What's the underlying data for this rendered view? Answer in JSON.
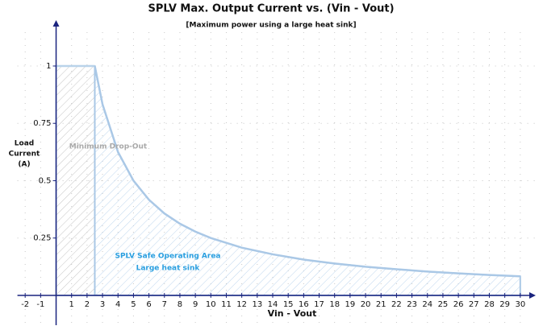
{
  "chart_data": {
    "type": "area",
    "title": "SPLV Max. Output Current vs. (Vin - Vout)",
    "subtitle": "[Maximum power using a large heat sink]",
    "xlabel": "Vin - Vout",
    "ylabel": [
      "Load",
      "Current",
      "(A)"
    ],
    "xlim": [
      -2.5,
      31
    ],
    "ylim": [
      -0.13,
      1.2
    ],
    "xticks": [
      -2,
      -1,
      1,
      2,
      3,
      4,
      5,
      6,
      7,
      8,
      9,
      10,
      11,
      12,
      13,
      14,
      15,
      16,
      17,
      18,
      19,
      20,
      21,
      22,
      23,
      24,
      25,
      26,
      27,
      28,
      29,
      30
    ],
    "yticks": [
      0.25,
      0.5,
      0.75,
      1
    ],
    "grid": true,
    "regions": [
      {
        "label": [
          "Minimum Drop-Out"
        ],
        "color": "#c4c4c4",
        "edge": "#b9d3ea",
        "label_color": "#a9a9a9",
        "x": [
          0,
          2.5
        ],
        "values": [
          1,
          1
        ]
      },
      {
        "label": [
          "SPLV Safe Operating Area",
          "Large heat sink"
        ],
        "color": "#bcd5ee",
        "edge": "#aac8e6",
        "label_color": "#2a9fe0",
        "x": [
          2.5,
          3,
          4,
          5,
          6,
          7,
          8,
          9,
          10,
          12,
          14,
          16,
          18,
          20,
          22,
          24,
          26,
          28,
          30
        ],
        "values": [
          1,
          0.833,
          0.625,
          0.5,
          0.417,
          0.357,
          0.3125,
          0.278,
          0.25,
          0.208,
          0.179,
          0.156,
          0.139,
          0.125,
          0.114,
          0.104,
          0.096,
          0.089,
          0.083
        ]
      }
    ]
  }
}
